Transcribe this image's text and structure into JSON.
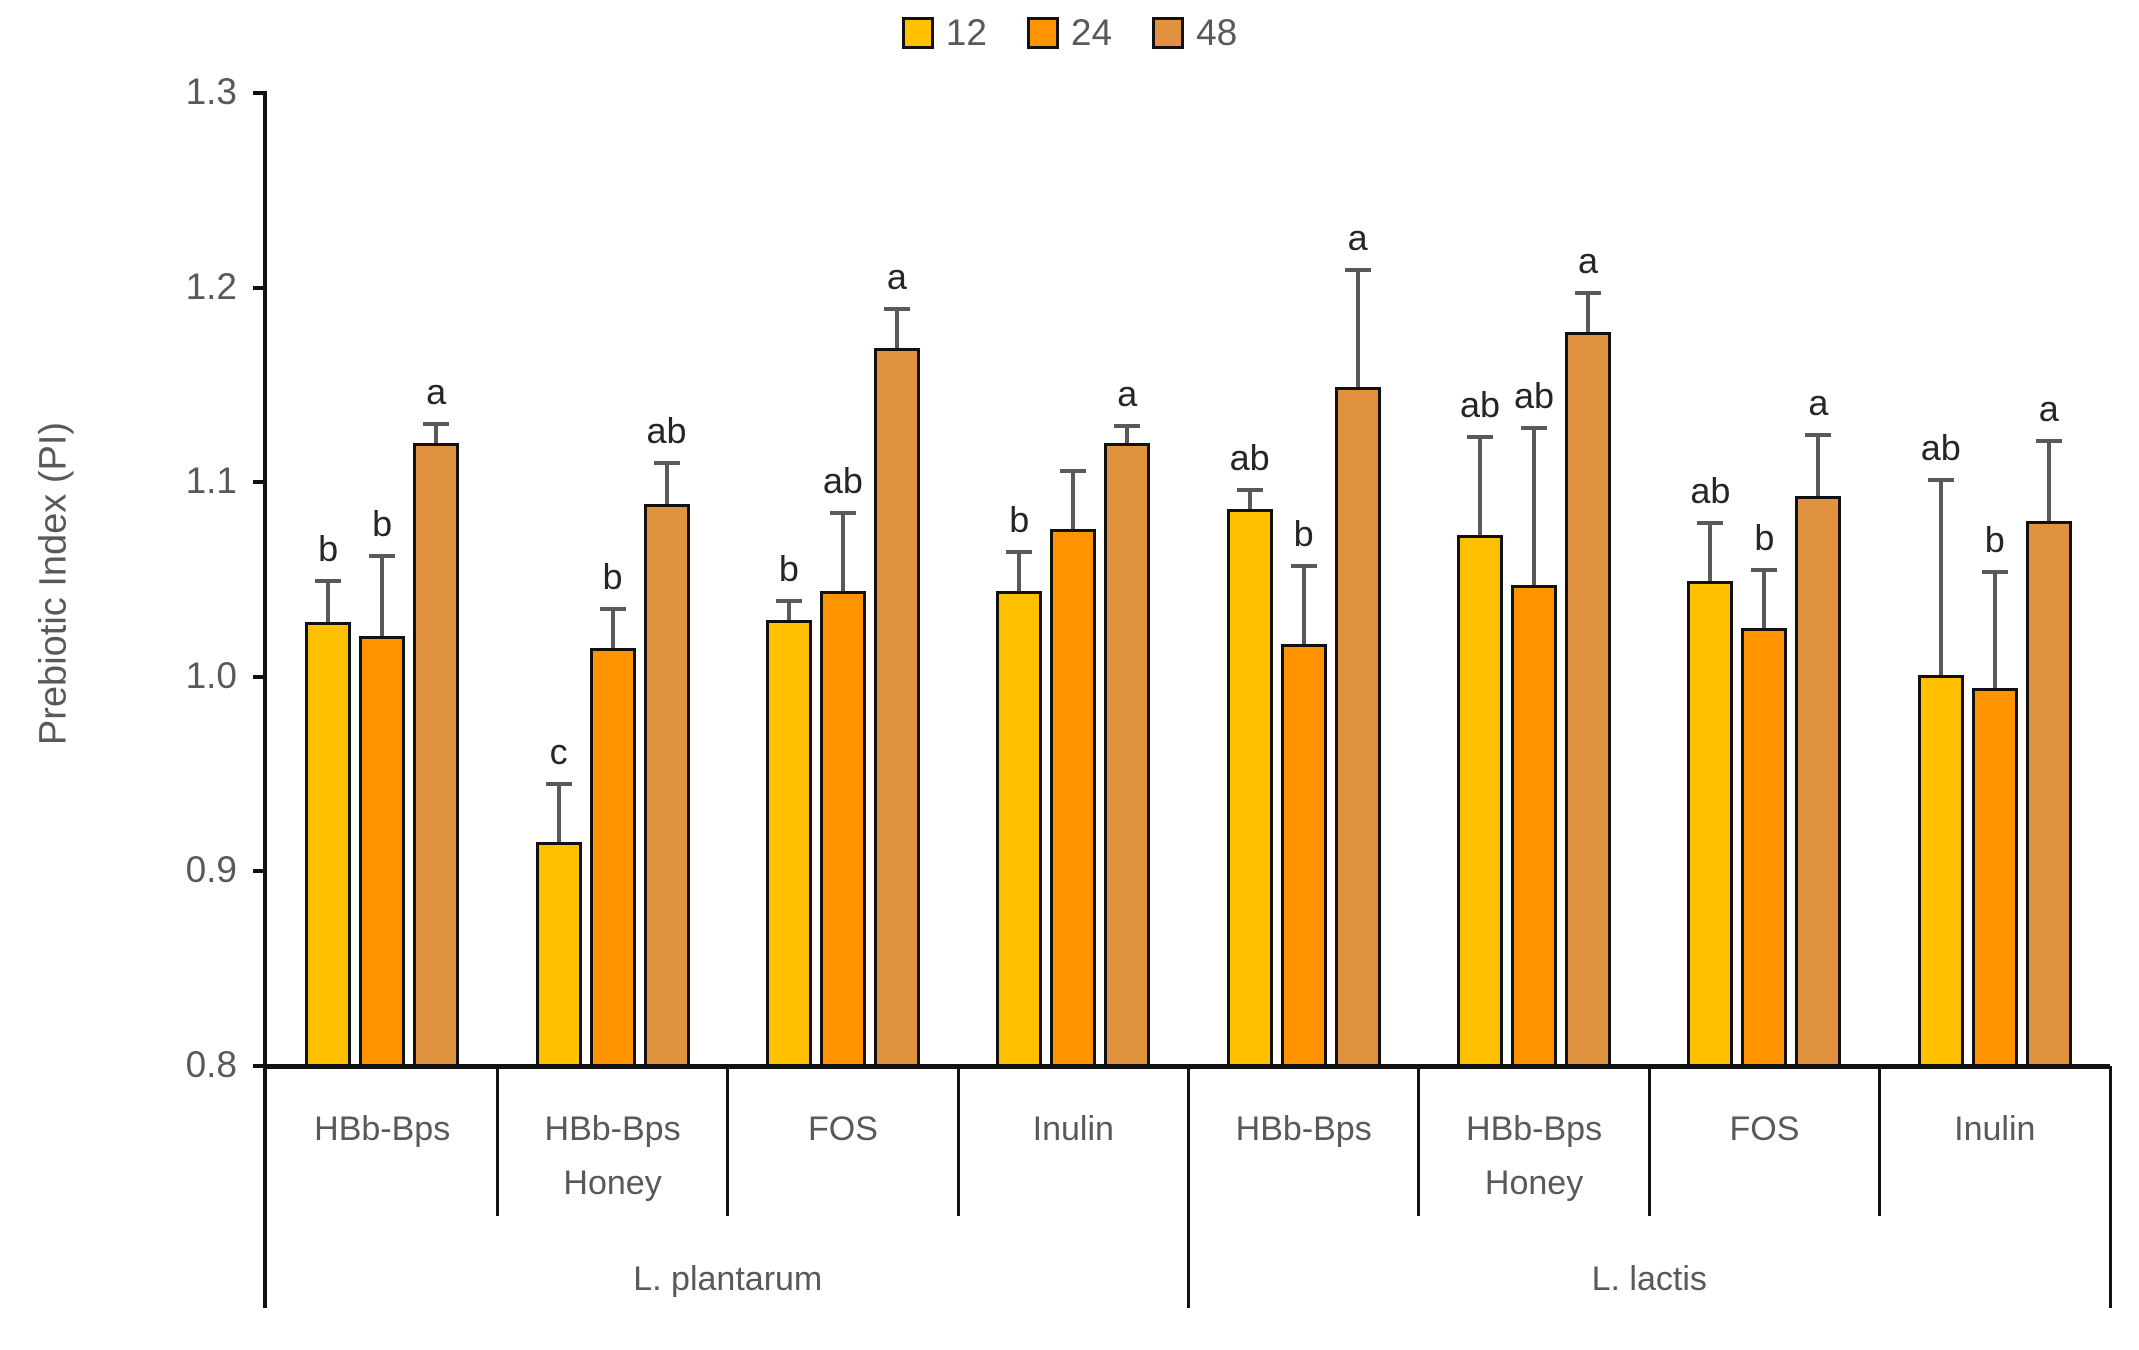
{
  "legend": {
    "items": [
      {
        "label": "12",
        "color": "#FFC000"
      },
      {
        "label": "24",
        "color": "#FF9300"
      },
      {
        "label": "48",
        "color": "#E0923F"
      }
    ]
  },
  "chart_data": {
    "type": "bar",
    "title": "",
    "ylabel": "Prebiotic Index (PI)",
    "ylim": [
      0.8,
      1.3
    ],
    "yticks": [
      {
        "value": 0.8,
        "label": "0.8"
      },
      {
        "value": 0.9,
        "label": "0.9"
      },
      {
        "value": 1.0,
        "label": "1.0"
      },
      {
        "value": 1.1,
        "label": "1.1"
      },
      {
        "value": 1.2,
        "label": "1.2"
      },
      {
        "value": 1.3,
        "label": "1.3"
      }
    ],
    "series": [
      {
        "name": "12",
        "color": "#FFC000"
      },
      {
        "name": "24",
        "color": "#FF9300"
      },
      {
        "name": "48",
        "color": "#E0923F"
      }
    ],
    "grid": false,
    "legend_position": "top-center",
    "strains": [
      {
        "label": "L. plantarum",
        "treatments": [
          {
            "label": "HBb-Bps",
            "bars": [
              {
                "series": "12",
                "value": 1.028,
                "error": 0.021,
                "letter": "b"
              },
              {
                "series": "24",
                "value": 1.021,
                "error": 0.041,
                "letter": "b"
              },
              {
                "series": "48",
                "value": 1.12,
                "error": 0.01,
                "letter": "a"
              }
            ]
          },
          {
            "label": "HBb-Bps\nHoney",
            "bars": [
              {
                "series": "12",
                "value": 0.915,
                "error": 0.03,
                "letter": "c"
              },
              {
                "series": "24",
                "value": 1.015,
                "error": 0.02,
                "letter": "b"
              },
              {
                "series": "48",
                "value": 1.089,
                "error": 0.021,
                "letter": "ab"
              }
            ]
          },
          {
            "label": "FOS",
            "bars": [
              {
                "series": "12",
                "value": 1.029,
                "error": 0.01,
                "letter": "b"
              },
              {
                "series": "24",
                "value": 1.044,
                "error": 0.04,
                "letter": "ab"
              },
              {
                "series": "48",
                "value": 1.169,
                "error": 0.02,
                "letter": "a"
              }
            ]
          },
          {
            "label": "Inulin",
            "bars": [
              {
                "series": "12",
                "value": 1.044,
                "error": 0.02,
                "letter": "b"
              },
              {
                "series": "24",
                "value": 1.076,
                "error": 0.03,
                "letter": ""
              },
              {
                "series": "48",
                "value": 1.12,
                "error": 0.009,
                "letter": "a"
              }
            ]
          }
        ]
      },
      {
        "label": "L. lactis",
        "treatments": [
          {
            "label": "HBb-Bps",
            "bars": [
              {
                "series": "12",
                "value": 1.086,
                "error": 0.01,
                "letter": "ab"
              },
              {
                "series": "24",
                "value": 1.017,
                "error": 0.04,
                "letter": "b"
              },
              {
                "series": "48",
                "value": 1.149,
                "error": 0.06,
                "letter": "a"
              }
            ]
          },
          {
            "label": "HBb-Bps\nHoney",
            "bars": [
              {
                "series": "12",
                "value": 1.073,
                "error": 0.05,
                "letter": "ab"
              },
              {
                "series": "24",
                "value": 1.047,
                "error": 0.081,
                "letter": "ab"
              },
              {
                "series": "48",
                "value": 1.177,
                "error": 0.02,
                "letter": "a"
              }
            ]
          },
          {
            "label": "FOS",
            "bars": [
              {
                "series": "12",
                "value": 1.049,
                "error": 0.03,
                "letter": "ab"
              },
              {
                "series": "24",
                "value": 1.025,
                "error": 0.03,
                "letter": "b"
              },
              {
                "series": "48",
                "value": 1.093,
                "error": 0.031,
                "letter": "a"
              }
            ]
          },
          {
            "label": "Inulin",
            "bars": [
              {
                "series": "12",
                "value": 1.001,
                "error": 0.1,
                "letter": "ab"
              },
              {
                "series": "24",
                "value": 0.994,
                "error": 0.06,
                "letter": "b"
              },
              {
                "series": "48",
                "value": 1.08,
                "error": 0.041,
                "letter": "a"
              }
            ]
          }
        ]
      }
    ]
  }
}
